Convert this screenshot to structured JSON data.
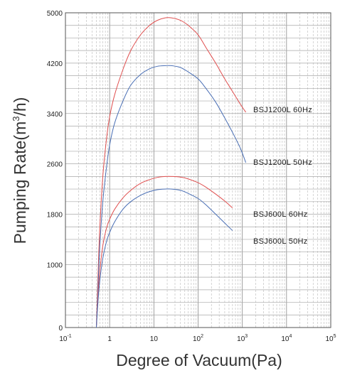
{
  "chart_data": {
    "type": "line",
    "title": "",
    "xlabel": "Degree of Vacuum(Pa)",
    "ylabel": "Pumping Rate(m³/h)",
    "x_scale": "log",
    "xlim": [
      0.1,
      100000
    ],
    "ylim": [
      0,
      5000
    ],
    "x_ticks": [
      {
        "value": 0.1,
        "base": "10",
        "exp": "-1"
      },
      {
        "value": 1,
        "base": "1",
        "exp": ""
      },
      {
        "value": 10,
        "base": "10",
        "exp": ""
      },
      {
        "value": 100,
        "base": "10",
        "exp": "2"
      },
      {
        "value": 1000,
        "base": "10",
        "exp": "3"
      },
      {
        "value": 10000,
        "base": "10",
        "exp": "4"
      },
      {
        "value": 100000,
        "base": "10",
        "exp": "5"
      }
    ],
    "y_ticks": [
      "0",
      "1000",
      "1800",
      "2600",
      "3400",
      "4200",
      "5000"
    ],
    "y_gridlines": [
      0,
      200,
      400,
      600,
      800,
      1000,
      1200,
      1400,
      1600,
      1800,
      2000,
      2200,
      2400,
      2600,
      2800,
      3000,
      3200,
      3400,
      3600,
      3800,
      4000,
      4200,
      4400,
      4600,
      4800,
      5000
    ],
    "grid": true,
    "series": [
      {
        "name": "BSJ1200L  60Hz",
        "color": "#e05050",
        "x": [
          0.5,
          0.55,
          0.6,
          0.7,
          0.85,
          1.0,
          1.3,
          2.0,
          3.0,
          5.0,
          8.0,
          12.0,
          18.0,
          25.0,
          40.0,
          60.0,
          100.0,
          150.0,
          250.0,
          400.0,
          600.0,
          900.0,
          1200.0
        ],
        "y": [
          0,
          900,
          1600,
          2400,
          3000,
          3350,
          3700,
          4100,
          4400,
          4650,
          4800,
          4880,
          4920,
          4920,
          4880,
          4800,
          4650,
          4450,
          4200,
          3950,
          3750,
          3550,
          3420
        ]
      },
      {
        "name": "BSJ1200L  50Hz",
        "color": "#4a6fb5",
        "x": [
          0.5,
          0.55,
          0.6,
          0.7,
          0.85,
          1.0,
          1.3,
          2.0,
          3.0,
          5.0,
          8.0,
          12.0,
          18.0,
          25.0,
          40.0,
          60.0,
          100.0,
          150.0,
          250.0,
          400.0,
          600.0,
          900.0,
          1200.0
        ],
        "y": [
          0,
          700,
          1300,
          2000,
          2550,
          2900,
          3250,
          3600,
          3850,
          4020,
          4110,
          4150,
          4160,
          4160,
          4130,
          4060,
          3950,
          3800,
          3580,
          3330,
          3100,
          2850,
          2620
        ]
      },
      {
        "name": "BSJ600L  60Hz",
        "color": "#e05050",
        "x": [
          0.5,
          0.55,
          0.6,
          0.7,
          0.85,
          1.0,
          1.3,
          2.0,
          3.0,
          5.0,
          8.0,
          12.0,
          18.0,
          25.0,
          40.0,
          60.0,
          100.0,
          150.0,
          250.0,
          400.0,
          600.0
        ],
        "y": [
          0,
          550,
          900,
          1300,
          1580,
          1720,
          1880,
          2060,
          2180,
          2290,
          2350,
          2385,
          2400,
          2400,
          2390,
          2360,
          2300,
          2230,
          2120,
          2010,
          1900
        ]
      },
      {
        "name": "BSJ600L  50Hz",
        "color": "#4a6fb5",
        "x": [
          0.5,
          0.55,
          0.6,
          0.7,
          0.85,
          1.0,
          1.3,
          2.0,
          3.0,
          5.0,
          8.0,
          12.0,
          18.0,
          25.0,
          40.0,
          60.0,
          100.0,
          150.0,
          250.0,
          400.0,
          600.0
        ],
        "y": [
          0,
          450,
          750,
          1100,
          1370,
          1510,
          1680,
          1880,
          2000,
          2100,
          2160,
          2190,
          2200,
          2200,
          2180,
          2130,
          2050,
          1950,
          1800,
          1660,
          1540
        ]
      }
    ]
  }
}
